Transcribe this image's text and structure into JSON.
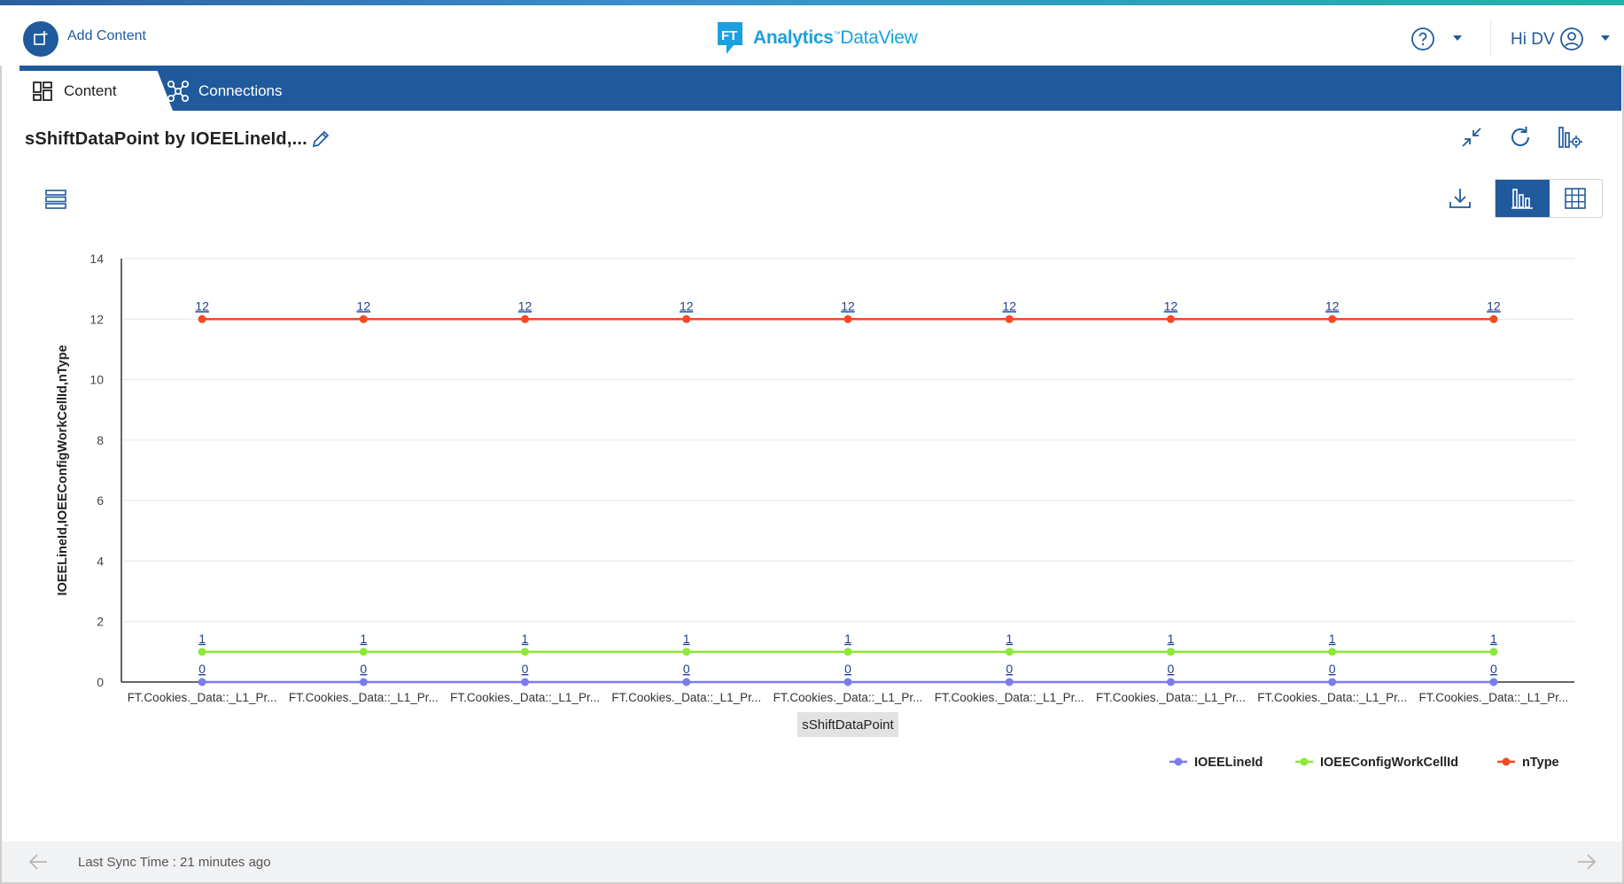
{
  "header": {
    "add_label": "Add Content",
    "logo_brand": "Analytics",
    "logo_tm": "™",
    "logo_product": "DataView",
    "greeting": "Hi DV"
  },
  "tabs": [
    {
      "label": "Content",
      "active": true
    },
    {
      "label": "Connections",
      "active": false
    }
  ],
  "page": {
    "title": "sShiftDataPoint by IOEELineId,..."
  },
  "footer": {
    "sync_text": "Last Sync Time : 21 minutes ago"
  },
  "colors": {
    "primary": "#205a9c",
    "series_IOEELineId": "#7b7bf0",
    "series_IOEEConfigWorkCellId": "#8ee83a",
    "series_nType": "#f04b23"
  },
  "chart_data": {
    "type": "line",
    "categories": [
      "FT.Cookies._Data::_L1_Pr...",
      "FT.Cookies._Data::_L1_Pr...",
      "FT.Cookies._Data::_L1_Pr...",
      "FT.Cookies._Data::_L1_Pr...",
      "FT.Cookies._Data::_L1_Pr...",
      "FT.Cookies._Data::_L1_Pr...",
      "FT.Cookies._Data::_L1_Pr...",
      "FT.Cookies._Data::_L1_Pr...",
      "FT.Cookies._Data::_L1_Pr..."
    ],
    "series": [
      {
        "name": "IOEELineId",
        "color": "#7b7bf0",
        "values": [
          0,
          0,
          0,
          0,
          0,
          0,
          0,
          0,
          0
        ]
      },
      {
        "name": "IOEEConfigWorkCellId",
        "color": "#8ee83a",
        "values": [
          1,
          1,
          1,
          1,
          1,
          1,
          1,
          1,
          1
        ]
      },
      {
        "name": "nType",
        "color": "#f04b23",
        "values": [
          12,
          12,
          12,
          12,
          12,
          12,
          12,
          12,
          12
        ]
      }
    ],
    "xlabel": "sShiftDataPoint",
    "ylabel": "IOEELineId,IOEEConfigWorkCellId,nType",
    "ylim": [
      0,
      14
    ],
    "yticks": [
      0,
      2,
      4,
      6,
      8,
      10,
      12,
      14
    ],
    "grid": true,
    "legend": "bottom-right",
    "data_labels": true
  }
}
